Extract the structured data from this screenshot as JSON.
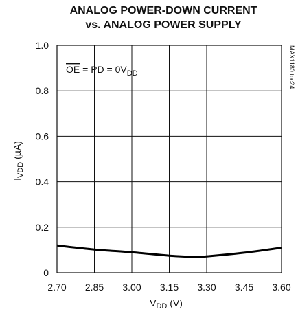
{
  "chart_data": {
    "type": "line",
    "title_line1": "ANALOG POWER-DOWN CURRENT",
    "title_line2": "vs. ANALOG POWER SUPPLY",
    "xlabel": {
      "main": "V",
      "sub": "DD",
      "unit": " (V)"
    },
    "ylabel": {
      "main": "I",
      "sub": "VDD",
      "unit": " (µA)"
    },
    "annotation": {
      "overline_part": "OE",
      "rest_text": " = PD = 0V",
      "rest_sub": "DD"
    },
    "part_code": "MAX1180 toc24",
    "xlim": [
      2.7,
      3.6
    ],
    "ylim": [
      0,
      1.0
    ],
    "x_ticks": [
      2.7,
      2.85,
      3.0,
      3.15,
      3.3,
      3.45,
      3.6
    ],
    "x_tick_labels": [
      "2.70",
      "2.85",
      "3.00",
      "3.15",
      "3.30",
      "3.45",
      "3.60"
    ],
    "y_ticks": [
      0,
      0.2,
      0.4,
      0.6,
      0.8,
      1.0
    ],
    "y_tick_labels": [
      "0",
      "0.2",
      "0.4",
      "0.6",
      "0.8",
      "1.0"
    ],
    "grid": true,
    "series": [
      {
        "x": [
          2.7,
          2.85,
          3.0,
          3.15,
          3.25,
          3.3,
          3.45,
          3.6
        ],
        "y": [
          0.12,
          0.102,
          0.09,
          0.075,
          0.07,
          0.072,
          0.088,
          0.11
        ]
      }
    ]
  }
}
